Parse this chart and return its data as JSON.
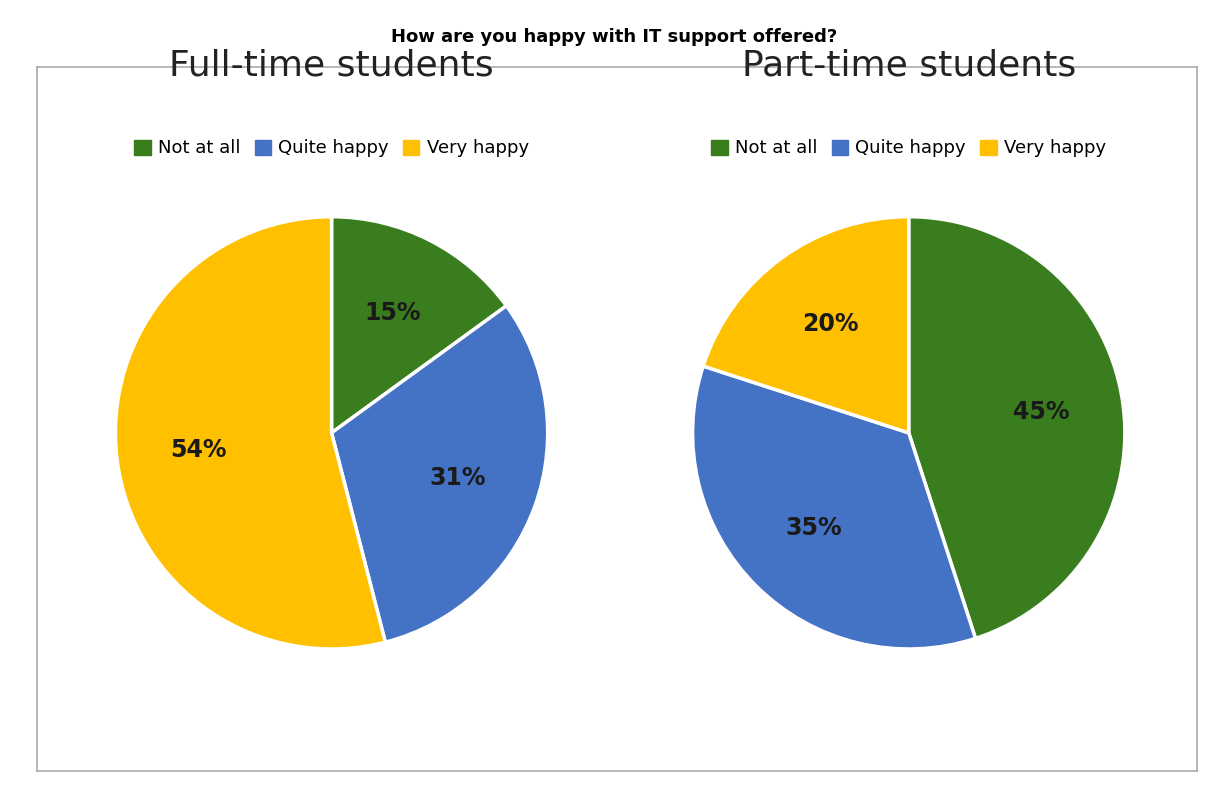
{
  "title": "How are you happy with IT support offered?",
  "title_fontsize": 13,
  "title_fontweight": "bold",
  "background_color": "#ffffff",
  "panel_background": "#ffffff",
  "border_color": "#aaaaaa",
  "charts": [
    {
      "title": "Full-time students",
      "title_fontsize": 26,
      "values": [
        15,
        31,
        54
      ],
      "labels": [
        "Not at all",
        "Quite happy",
        "Very happy"
      ],
      "colors": [
        "#3a7d1e",
        "#4472c4",
        "#ffc000"
      ],
      "pct_labels": [
        "15%",
        "31%",
        "54%"
      ],
      "startangle": 90
    },
    {
      "title": "Part-time students",
      "title_fontsize": 26,
      "values": [
        45,
        35,
        20
      ],
      "labels": [
        "Not at all",
        "Quite happy",
        "Very happy"
      ],
      "colors": [
        "#3a7d1e",
        "#4472c4",
        "#ffc000"
      ],
      "pct_labels": [
        "45%",
        "35%",
        "20%"
      ],
      "startangle": 90
    }
  ],
  "legend_colors": [
    "#3a7d1e",
    "#4472c4",
    "#ffc000"
  ],
  "legend_labels": [
    "Not at all",
    "Quite happy",
    "Very happy"
  ],
  "pct_fontsize": 17,
  "pct_color": "#1a1a1a",
  "legend_fontsize": 13
}
